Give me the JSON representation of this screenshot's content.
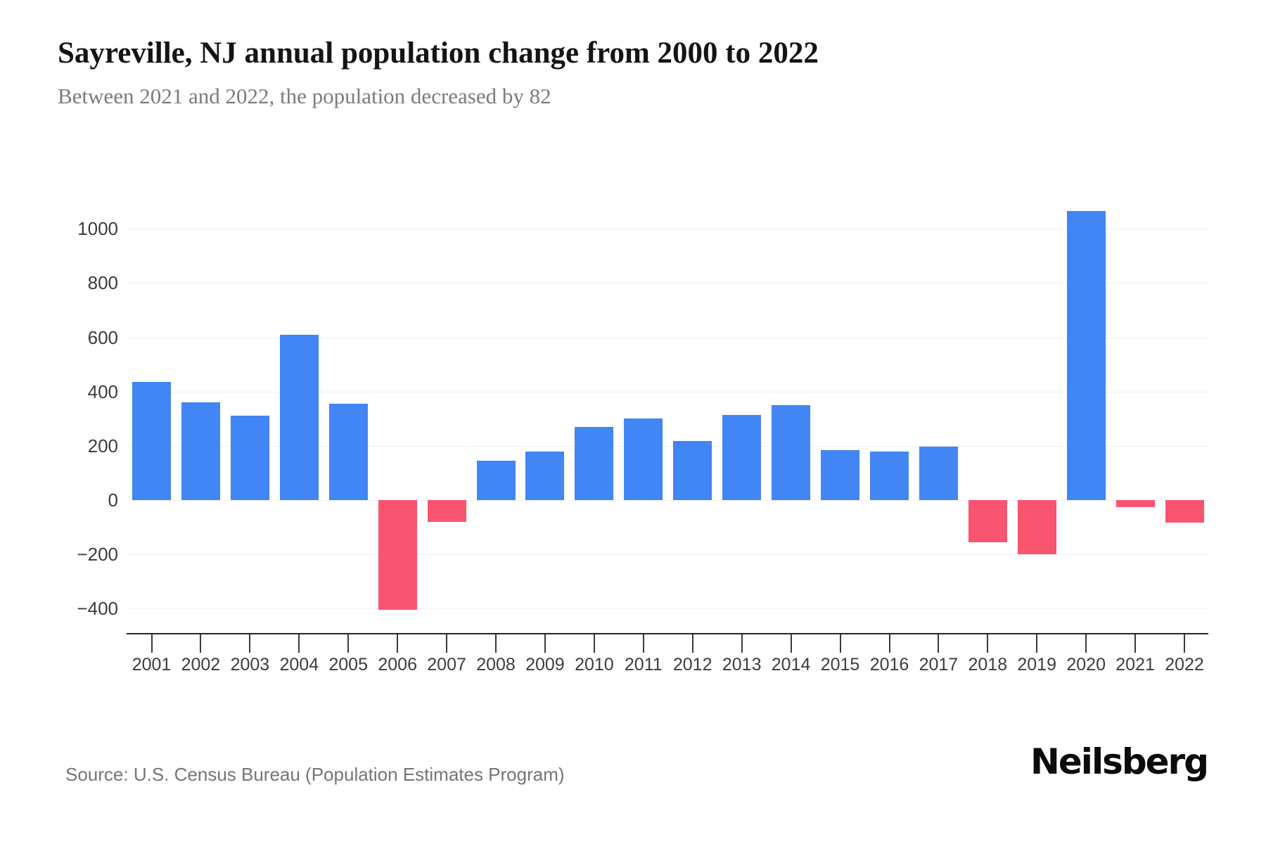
{
  "header": {
    "title": "Sayreville, NJ annual population change from 2000 to 2022",
    "subtitle": "Between 2021 and 2022, the population decreased by 82"
  },
  "footer": {
    "source": "Source: U.S. Census Bureau (Population Estimates Program)",
    "brand": "Neilsberg"
  },
  "chart_data": {
    "type": "bar",
    "title": "Sayreville, NJ annual population change from 2000 to 2022",
    "categories": [
      "2001",
      "2002",
      "2003",
      "2004",
      "2005",
      "2006",
      "2007",
      "2008",
      "2009",
      "2010",
      "2011",
      "2012",
      "2013",
      "2014",
      "2015",
      "2016",
      "2017",
      "2018",
      "2019",
      "2020",
      "2021",
      "2022"
    ],
    "values": [
      435,
      360,
      310,
      610,
      355,
      -405,
      -80,
      145,
      178,
      270,
      300,
      218,
      315,
      350,
      185,
      178,
      198,
      -155,
      -200,
      1065,
      -25,
      -82
    ],
    "xlabel": "",
    "ylabel": "",
    "ylim": [
      -490,
      1195
    ],
    "yticks": [
      1000,
      800,
      600,
      400,
      200,
      0,
      -200,
      -400
    ],
    "yticklabels": [
      "1000",
      "800",
      "600",
      "400",
      "200",
      "0",
      "−200",
      "−400"
    ],
    "grid": true,
    "legend_position": "none",
    "colors": {
      "positive_bar": "#4285F4",
      "negative_bar": "#F95470",
      "gridline": "#efefef",
      "axis_line": "#262626",
      "tick_label": "#3d3d3d"
    }
  }
}
